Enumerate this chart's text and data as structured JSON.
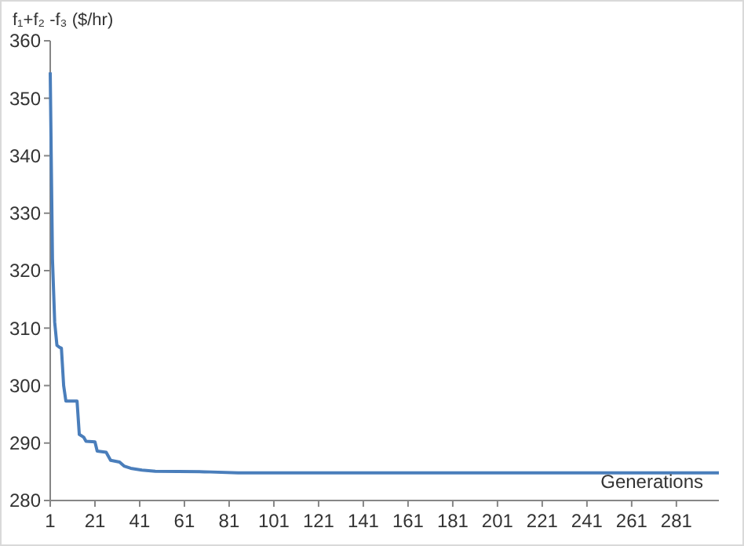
{
  "chart_data": {
    "type": "line",
    "ylabel": "f₁+f₂ -f₃ ($/hr)",
    "xlabel": "Generations",
    "xlim": [
      1,
      300
    ],
    "xticks": [
      1,
      21,
      41,
      61,
      81,
      101,
      121,
      141,
      161,
      181,
      201,
      221,
      241,
      261,
      281
    ],
    "ylim": [
      280,
      360
    ],
    "yticks": [
      280,
      290,
      300,
      310,
      320,
      330,
      340,
      350,
      360
    ],
    "grid": false,
    "marker": "none",
    "line_style": "solid",
    "series": [
      {
        "color": "#4a7ebb",
        "x": [
          1,
          2,
          3,
          4,
          5,
          6,
          7,
          8,
          13,
          14,
          16,
          17,
          21,
          22,
          26,
          28,
          32,
          34,
          37,
          42,
          48,
          70,
          85,
          300
        ],
        "values": [
          354.5,
          322,
          311,
          307,
          306.7,
          306.5,
          300,
          297.3,
          297.3,
          291.5,
          291,
          290.3,
          290.2,
          288.6,
          288.4,
          287,
          286.7,
          286,
          285.6,
          285.3,
          285.1,
          285,
          284.8,
          284.8
        ]
      }
    ]
  }
}
